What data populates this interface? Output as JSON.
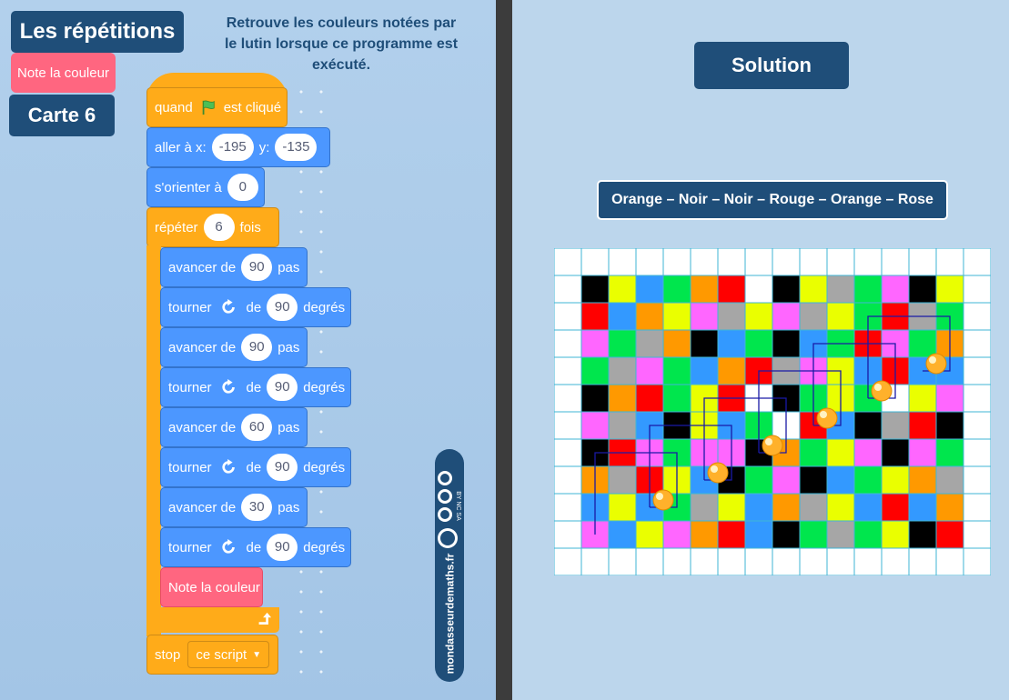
{
  "header": {
    "title": "Les répétitions",
    "tag": "Note la couleur",
    "card": "Carte 6",
    "instruction": "Retrouve les couleurs notées par le lutin lorsque ce programme est exécuté."
  },
  "program": {
    "when_prefix": "quand",
    "when_suffix": "est cliqué",
    "goto": {
      "label": "aller à x:",
      "x": "-195",
      "y_label": "y:",
      "y": "-135"
    },
    "point": {
      "label": "s'orienter à",
      "value": "0"
    },
    "repeat": {
      "label": "répéter",
      "value": "6",
      "suffix": "fois"
    },
    "inner": [
      {
        "kind": "move",
        "label": "avancer de",
        "value": "90",
        "suffix": "pas"
      },
      {
        "kind": "turn",
        "label": "tourner",
        "of": "de",
        "value": "90",
        "suffix": "degrés"
      },
      {
        "kind": "move",
        "label": "avancer de",
        "value": "90",
        "suffix": "pas"
      },
      {
        "kind": "turn",
        "label": "tourner",
        "of": "de",
        "value": "90",
        "suffix": "degrés"
      },
      {
        "kind": "move",
        "label": "avancer de",
        "value": "60",
        "suffix": "pas"
      },
      {
        "kind": "turn",
        "label": "tourner",
        "of": "de",
        "value": "90",
        "suffix": "degrés"
      },
      {
        "kind": "move",
        "label": "avancer de",
        "value": "30",
        "suffix": "pas"
      },
      {
        "kind": "turn",
        "label": "tourner",
        "of": "de",
        "value": "90",
        "suffix": "degrés"
      },
      {
        "kind": "note",
        "label": "Note la couleur"
      }
    ],
    "stop": {
      "label": "stop",
      "option": "ce script"
    }
  },
  "logo": {
    "site": "mondasseurdemaths.fr",
    "license": "BY NC SA"
  },
  "solution": {
    "title": "Solution",
    "answer": "Orange – Noir – Noir – Rouge – Orange – Rose"
  },
  "colors": {
    "K": "#000000",
    "Y": "#eaff00",
    "B": "#3399ff",
    "G": "#00e64d",
    "O": "#ff9900",
    "R": "#ff0000",
    "P": "#ff66ff",
    "A": "#a6a6a6",
    "W": "#ffffff",
    "block_blue": "#4c97ff",
    "block_orange": "#ffab19",
    "block_pink": "#ff6680",
    "navy": "#1f4e79"
  },
  "grid": {
    "cells": [
      "WWWWWWWWWWWWWWWW",
      "WKYBGORWKYAGPKYW",
      "WRBOYPAYPAYGRAGW",
      "WPGAOKBGKBGRPGOW",
      "WGAPGBORAPYBRBBW",
      "WKORGYRWKGYGWYPW",
      "WPABKYBGWRBKARKW",
      "WKRPGPPKOGYPKPGW",
      "WOARYBKGPKBGYOAW",
      "WBYBGAYBOAYBRBOW",
      "WPBYPORBKGAGYKRW",
      "WWWWWWWWWWWWWWWW"
    ]
  }
}
